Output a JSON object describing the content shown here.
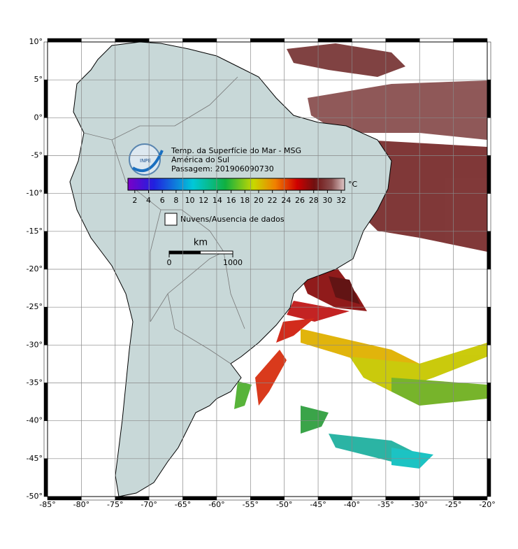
{
  "map": {
    "title_lines": [
      "Temp. da Superfície do Mar - MSG",
      "América do Sul",
      "Passagem: 201906090730"
    ],
    "logo": "INPE",
    "colorbar": {
      "unit": "°C",
      "lim": [
        1,
        32.5
      ],
      "ticks": [
        2,
        4,
        6,
        8,
        10,
        12,
        14,
        16,
        18,
        20,
        22,
        24,
        26,
        28,
        30,
        32
      ]
    },
    "legend": "Nuvens/Ausencia de dados",
    "scale_bar": {
      "unit": "km",
      "lim": [
        0,
        1000
      ],
      "ticks": [
        0,
        1000
      ]
    },
    "lonlim": [
      -85,
      -20
    ],
    "latlim": [
      -50,
      10
    ],
    "lon_ticks": [
      {
        "value": -85,
        "label": "-85°"
      },
      {
        "value": -80,
        "label": "-80°"
      },
      {
        "value": -75,
        "label": "-75°"
      },
      {
        "value": -70,
        "label": "-70°"
      },
      {
        "value": -65,
        "label": "-65°"
      },
      {
        "value": -60,
        "label": "-60°"
      },
      {
        "value": -55,
        "label": "-55°"
      },
      {
        "value": -50,
        "label": "-50°"
      },
      {
        "value": -45,
        "label": "-45°"
      },
      {
        "value": -40,
        "label": "-40°"
      },
      {
        "value": -35,
        "label": "-35°"
      },
      {
        "value": -30,
        "label": "-30°"
      },
      {
        "value": -25,
        "label": "-25°"
      },
      {
        "value": -20,
        "label": "-20°"
      }
    ],
    "lat_ticks": [
      {
        "value": 10,
        "label": "10°"
      },
      {
        "value": 5,
        "label": "5°"
      },
      {
        "value": 0,
        "label": "0°"
      },
      {
        "value": -5,
        "label": "-5°"
      },
      {
        "value": -10,
        "label": "-10°"
      },
      {
        "value": -15,
        "label": "-15°"
      },
      {
        "value": -20,
        "label": "-20°"
      },
      {
        "value": -25,
        "label": "-25°"
      },
      {
        "value": -30,
        "label": "-30°"
      },
      {
        "value": -35,
        "label": "-35°"
      },
      {
        "value": -40,
        "label": "-40°"
      },
      {
        "value": -45,
        "label": "-45°"
      },
      {
        "value": -50,
        "label": "-50°"
      }
    ]
  }
}
